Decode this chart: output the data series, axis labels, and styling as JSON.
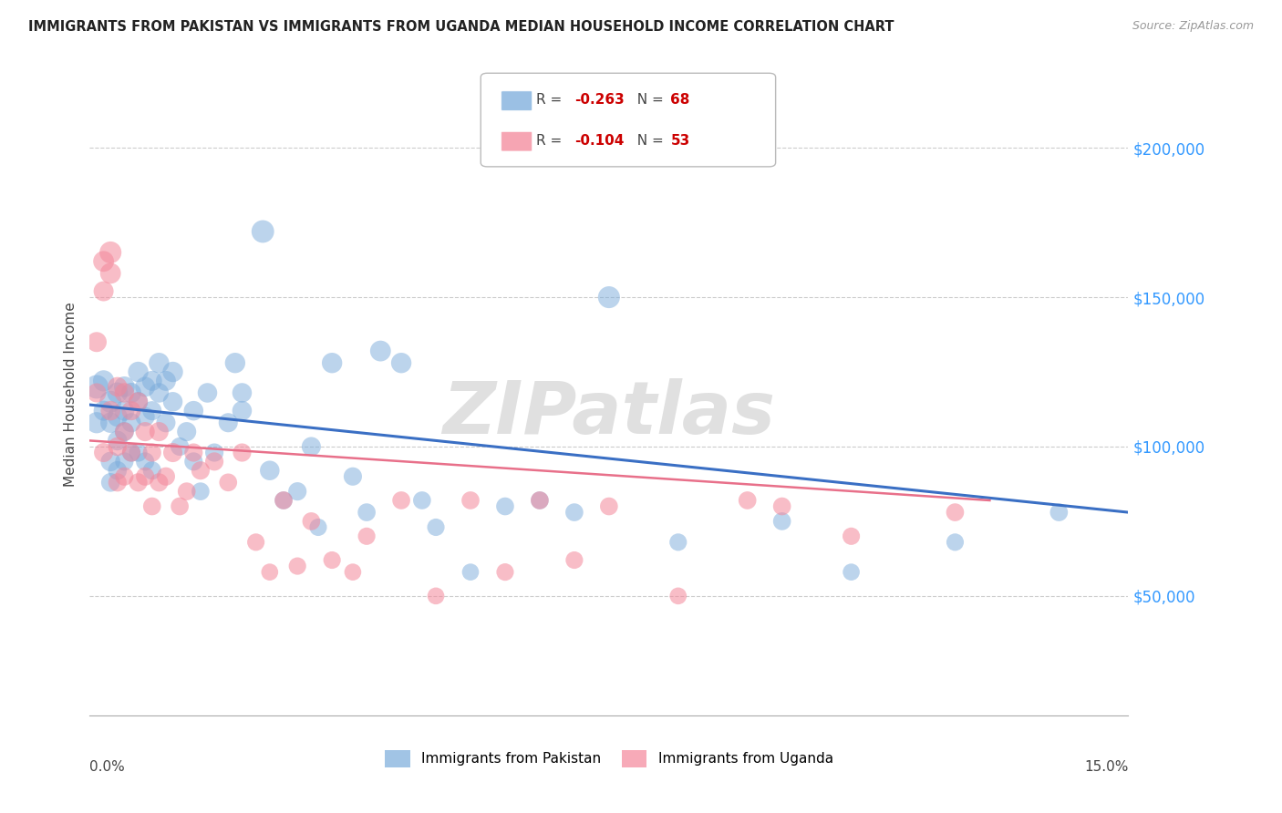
{
  "title": "IMMIGRANTS FROM PAKISTAN VS IMMIGRANTS FROM UGANDA MEDIAN HOUSEHOLD INCOME CORRELATION CHART",
  "source": "Source: ZipAtlas.com",
  "ylabel": "Median Household Income",
  "yticks": [
    50000,
    100000,
    150000,
    200000
  ],
  "ytick_labels": [
    "$50,000",
    "$100,000",
    "$150,000",
    "$200,000"
  ],
  "xlim": [
    0.0,
    0.15
  ],
  "ylim": [
    10000,
    225000
  ],
  "background_color": "#ffffff",
  "grid_color": "#cccccc",
  "watermark": "ZIPatlas",
  "pakistan_color": "#7aabdb",
  "uganda_color": "#f4879a",
  "pakistan_R": "-0.263",
  "pakistan_N": "68",
  "uganda_R": "-0.104",
  "uganda_N": "53",
  "pakistan_x": [
    0.001,
    0.001,
    0.002,
    0.002,
    0.003,
    0.003,
    0.003,
    0.003,
    0.004,
    0.004,
    0.004,
    0.004,
    0.005,
    0.005,
    0.005,
    0.005,
    0.006,
    0.006,
    0.006,
    0.007,
    0.007,
    0.007,
    0.008,
    0.008,
    0.008,
    0.009,
    0.009,
    0.009,
    0.01,
    0.01,
    0.011,
    0.011,
    0.012,
    0.012,
    0.013,
    0.014,
    0.015,
    0.015,
    0.016,
    0.017,
    0.018,
    0.02,
    0.021,
    0.022,
    0.022,
    0.025,
    0.026,
    0.028,
    0.03,
    0.032,
    0.033,
    0.035,
    0.038,
    0.04,
    0.042,
    0.045,
    0.048,
    0.05,
    0.055,
    0.06,
    0.065,
    0.07,
    0.075,
    0.085,
    0.1,
    0.11,
    0.125,
    0.14
  ],
  "pakistan_y": [
    120000,
    108000,
    122000,
    112000,
    115000,
    108000,
    95000,
    88000,
    118000,
    110000,
    102000,
    92000,
    120000,
    112000,
    105000,
    95000,
    118000,
    108000,
    98000,
    125000,
    115000,
    98000,
    120000,
    110000,
    95000,
    122000,
    112000,
    92000,
    128000,
    118000,
    122000,
    108000,
    125000,
    115000,
    100000,
    105000,
    112000,
    95000,
    85000,
    118000,
    98000,
    108000,
    128000,
    118000,
    112000,
    172000,
    92000,
    82000,
    85000,
    100000,
    73000,
    128000,
    90000,
    78000,
    132000,
    128000,
    82000,
    73000,
    58000,
    80000,
    82000,
    78000,
    150000,
    68000,
    75000,
    58000,
    68000,
    78000
  ],
  "pakistan_size": [
    350,
    280,
    280,
    250,
    300,
    260,
    240,
    220,
    270,
    250,
    240,
    220,
    270,
    250,
    230,
    210,
    250,
    230,
    210,
    260,
    240,
    210,
    250,
    230,
    210,
    250,
    230,
    210,
    260,
    240,
    250,
    230,
    260,
    240,
    210,
    230,
    240,
    210,
    200,
    240,
    210,
    230,
    260,
    240,
    240,
    320,
    240,
    200,
    210,
    230,
    190,
    260,
    210,
    200,
    270,
    260,
    200,
    190,
    180,
    200,
    200,
    200,
    300,
    190,
    200,
    180,
    190,
    200
  ],
  "uganda_x": [
    0.001,
    0.001,
    0.002,
    0.002,
    0.002,
    0.003,
    0.003,
    0.003,
    0.004,
    0.004,
    0.004,
    0.005,
    0.005,
    0.005,
    0.006,
    0.006,
    0.007,
    0.007,
    0.008,
    0.008,
    0.009,
    0.009,
    0.01,
    0.01,
    0.011,
    0.012,
    0.013,
    0.014,
    0.015,
    0.016,
    0.018,
    0.02,
    0.022,
    0.024,
    0.026,
    0.028,
    0.03,
    0.032,
    0.035,
    0.038,
    0.04,
    0.045,
    0.05,
    0.055,
    0.06,
    0.065,
    0.07,
    0.075,
    0.085,
    0.095,
    0.1,
    0.11,
    0.125
  ],
  "uganda_y": [
    135000,
    118000,
    162000,
    152000,
    98000,
    165000,
    158000,
    112000,
    120000,
    100000,
    88000,
    118000,
    105000,
    90000,
    112000,
    98000,
    115000,
    88000,
    105000,
    90000,
    98000,
    80000,
    105000,
    88000,
    90000,
    98000,
    80000,
    85000,
    98000,
    92000,
    95000,
    88000,
    98000,
    68000,
    58000,
    82000,
    60000,
    75000,
    62000,
    58000,
    70000,
    82000,
    50000,
    82000,
    58000,
    82000,
    62000,
    80000,
    50000,
    82000,
    80000,
    70000,
    78000
  ],
  "uganda_size": [
    250,
    230,
    270,
    250,
    230,
    300,
    270,
    240,
    240,
    220,
    210,
    240,
    220,
    210,
    230,
    210,
    230,
    210,
    230,
    210,
    210,
    200,
    230,
    210,
    210,
    230,
    200,
    200,
    210,
    210,
    210,
    200,
    210,
    190,
    180,
    200,
    190,
    200,
    190,
    180,
    190,
    200,
    180,
    200,
    190,
    200,
    190,
    200,
    180,
    200,
    200,
    190,
    200
  ],
  "pakistan_trend_x": [
    0.0,
    0.15
  ],
  "pakistan_trend_y": [
    114000,
    78000
  ],
  "uganda_trend_x": [
    0.0,
    0.13
  ],
  "uganda_trend_y": [
    102000,
    82000
  ],
  "legend_R_pakistan": "-0.263",
  "legend_N_pakistan": "68",
  "legend_R_uganda": "-0.104",
  "legend_N_uganda": "53",
  "legend_label_pakistan": "Immigrants from Pakistan",
  "legend_label_uganda": "Immigrants from Uganda",
  "trend_pk_color": "#3a6fc4",
  "trend_ug_color": "#e8708a"
}
